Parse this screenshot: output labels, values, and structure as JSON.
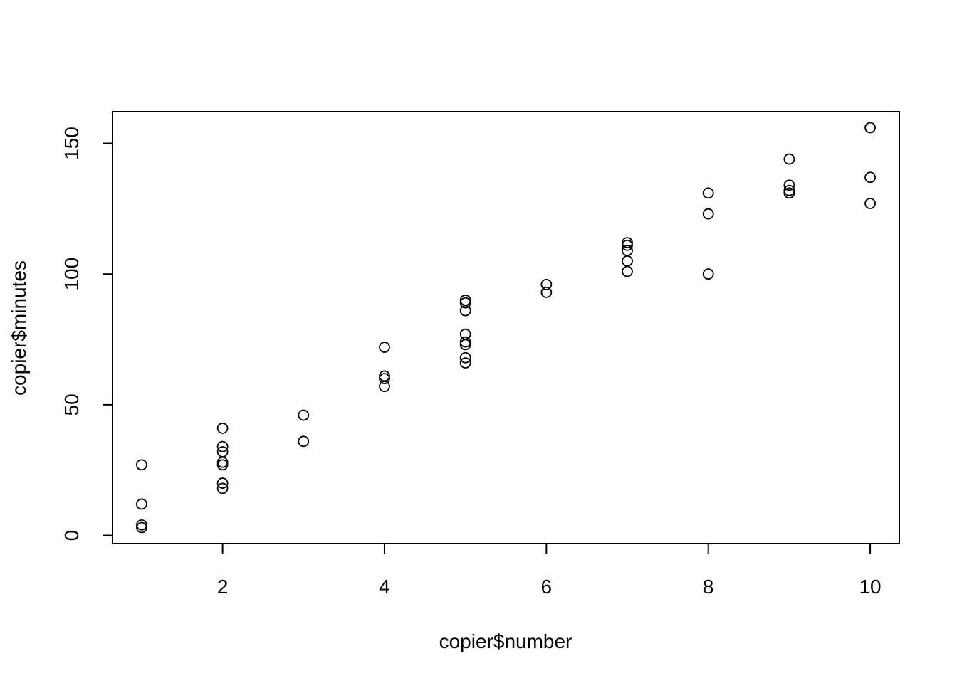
{
  "chart_data": {
    "type": "scatter",
    "xlabel": "copier$number",
    "ylabel": "copier$minutes",
    "xlim": [
      0.64,
      10.36
    ],
    "ylim": [
      -3.12,
      162.12
    ],
    "x_ticks": [
      2,
      4,
      6,
      8,
      10
    ],
    "x_tick_labels": [
      "2",
      "4",
      "6",
      "8",
      "10"
    ],
    "y_ticks": [
      0,
      50,
      100,
      150
    ],
    "y_tick_labels": [
      "0",
      "50",
      "100",
      "150"
    ],
    "grid": false,
    "marker": "open-circle",
    "colors": {
      "points": "#000000",
      "axes": "#000000",
      "background": "#ffffff"
    },
    "points": [
      {
        "x": 1,
        "y": 27
      },
      {
        "x": 1,
        "y": 12
      },
      {
        "x": 1,
        "y": 4
      },
      {
        "x": 1,
        "y": 3
      },
      {
        "x": 2,
        "y": 41
      },
      {
        "x": 2,
        "y": 34
      },
      {
        "x": 2,
        "y": 32
      },
      {
        "x": 2,
        "y": 28
      },
      {
        "x": 2,
        "y": 27
      },
      {
        "x": 2,
        "y": 20
      },
      {
        "x": 2,
        "y": 18
      },
      {
        "x": 3,
        "y": 46
      },
      {
        "x": 3,
        "y": 36
      },
      {
        "x": 4,
        "y": 72
      },
      {
        "x": 4,
        "y": 61
      },
      {
        "x": 4,
        "y": 60
      },
      {
        "x": 4,
        "y": 57
      },
      {
        "x": 5,
        "y": 90
      },
      {
        "x": 5,
        "y": 89
      },
      {
        "x": 5,
        "y": 86
      },
      {
        "x": 5,
        "y": 77
      },
      {
        "x": 5,
        "y": 74
      },
      {
        "x": 5,
        "y": 73
      },
      {
        "x": 5,
        "y": 68
      },
      {
        "x": 5,
        "y": 66
      },
      {
        "x": 6,
        "y": 96
      },
      {
        "x": 6,
        "y": 93
      },
      {
        "x": 7,
        "y": 112
      },
      {
        "x": 7,
        "y": 111
      },
      {
        "x": 7,
        "y": 109
      },
      {
        "x": 7,
        "y": 105
      },
      {
        "x": 7,
        "y": 101
      },
      {
        "x": 8,
        "y": 131
      },
      {
        "x": 8,
        "y": 123
      },
      {
        "x": 8,
        "y": 100
      },
      {
        "x": 9,
        "y": 144
      },
      {
        "x": 9,
        "y": 134
      },
      {
        "x": 9,
        "y": 132
      },
      {
        "x": 9,
        "y": 131
      },
      {
        "x": 10,
        "y": 156
      },
      {
        "x": 10,
        "y": 137
      },
      {
        "x": 10,
        "y": 127
      }
    ]
  }
}
